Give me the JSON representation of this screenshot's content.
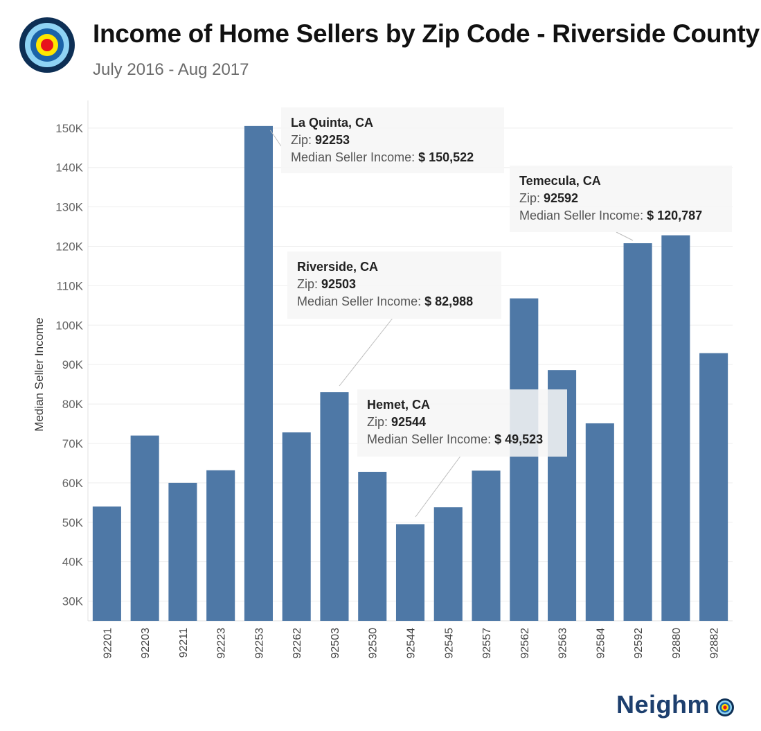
{
  "header": {
    "title": "Income of Home Sellers by Zip Code - Riverside County",
    "subtitle": "July 2016 - Aug 2017"
  },
  "branding": {
    "name": "Neighm",
    "logo_icon": "target-icon",
    "colors": {
      "ring_outer": "#0d2f55",
      "ring_2": "#8fd3f4",
      "ring_3": "#1b63a8",
      "ring_4": "#ffe600",
      "center": "#e8141c"
    }
  },
  "chart_data": {
    "type": "bar",
    "title": "Income of Home Sellers by Zip Code - Riverside County",
    "subtitle": "July 2016 - Aug 2017",
    "xlabel": "",
    "ylabel": "Median Seller Income",
    "ylim": [
      25000,
      157000
    ],
    "yticks": [
      30000,
      40000,
      50000,
      60000,
      70000,
      80000,
      90000,
      100000,
      110000,
      120000,
      130000,
      140000,
      150000
    ],
    "ytick_labels": [
      "30K",
      "40K",
      "50K",
      "60K",
      "70K",
      "80K",
      "90K",
      "100K",
      "110K",
      "120K",
      "130K",
      "140K",
      "150K"
    ],
    "grid": true,
    "bar_color": "#4e78a6",
    "categories": [
      "92201",
      "92203",
      "92211",
      "92223",
      "92253",
      "92262",
      "92503",
      "92530",
      "92544",
      "92545",
      "92557",
      "92562",
      "92563",
      "92584",
      "92592",
      "92880",
      "92882"
    ],
    "values": [
      54000,
      72000,
      60000,
      63200,
      150522,
      72800,
      82988,
      62800,
      49523,
      53800,
      63100,
      106800,
      88600,
      75100,
      120787,
      122800,
      92900
    ],
    "annotations": [
      {
        "category": "92253",
        "city": "La Quinta, CA",
        "zip_label": "Zip:",
        "zip": "92253",
        "income_label": "Median Seller Income:",
        "income": "$ 150,522"
      },
      {
        "category": "92592",
        "city": "Temecula, CA",
        "zip_label": "Zip:",
        "zip": "92592",
        "income_label": "Median Seller Income:",
        "income": "$ 120,787"
      },
      {
        "category": "92503",
        "city": "Riverside, CA",
        "zip_label": "Zip:",
        "zip": "92503",
        "income_label": "Median Seller Income:",
        "income": "$ 82,988"
      },
      {
        "category": "92544",
        "city": "Hemet, CA",
        "zip_label": "Zip:",
        "zip": "92544",
        "income_label": "Median Seller Income:",
        "income": "$ 49,523"
      }
    ]
  }
}
